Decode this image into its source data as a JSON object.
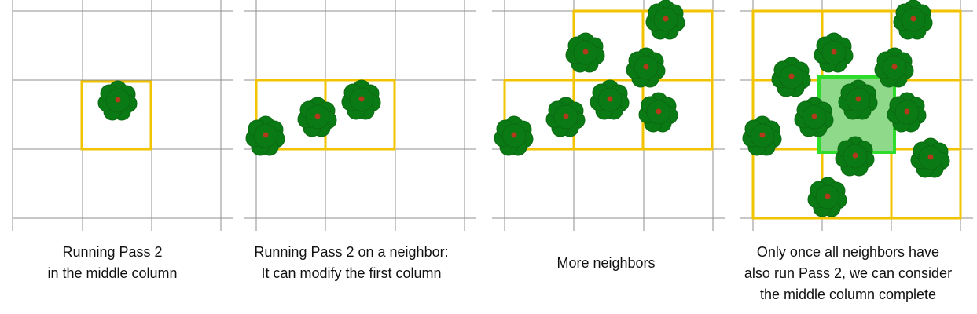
{
  "colors": {
    "grid": "#8f8f8f",
    "cell_border": "#f2c300",
    "cell_border_outer": "#f7e27a",
    "tree_leaf": "#0a7a14",
    "tree_leaf_dark": "#0b6a12",
    "tree_center": "#b23a1a",
    "highlight_border": "#2ddc2d",
    "highlight_fill": "#8ed98a"
  },
  "icons": [
    "tree-icon"
  ],
  "panels": [
    {
      "caption": "Running Pass 2\nin the middle column"
    },
    {
      "caption": "Running Pass 2 on a neighbor:\nIt can modify the first column"
    },
    {
      "caption": "More neighbors"
    },
    {
      "caption": "Only once all neighbors have\nalso run Pass 2, we can consider\nthe middle column complete"
    }
  ]
}
